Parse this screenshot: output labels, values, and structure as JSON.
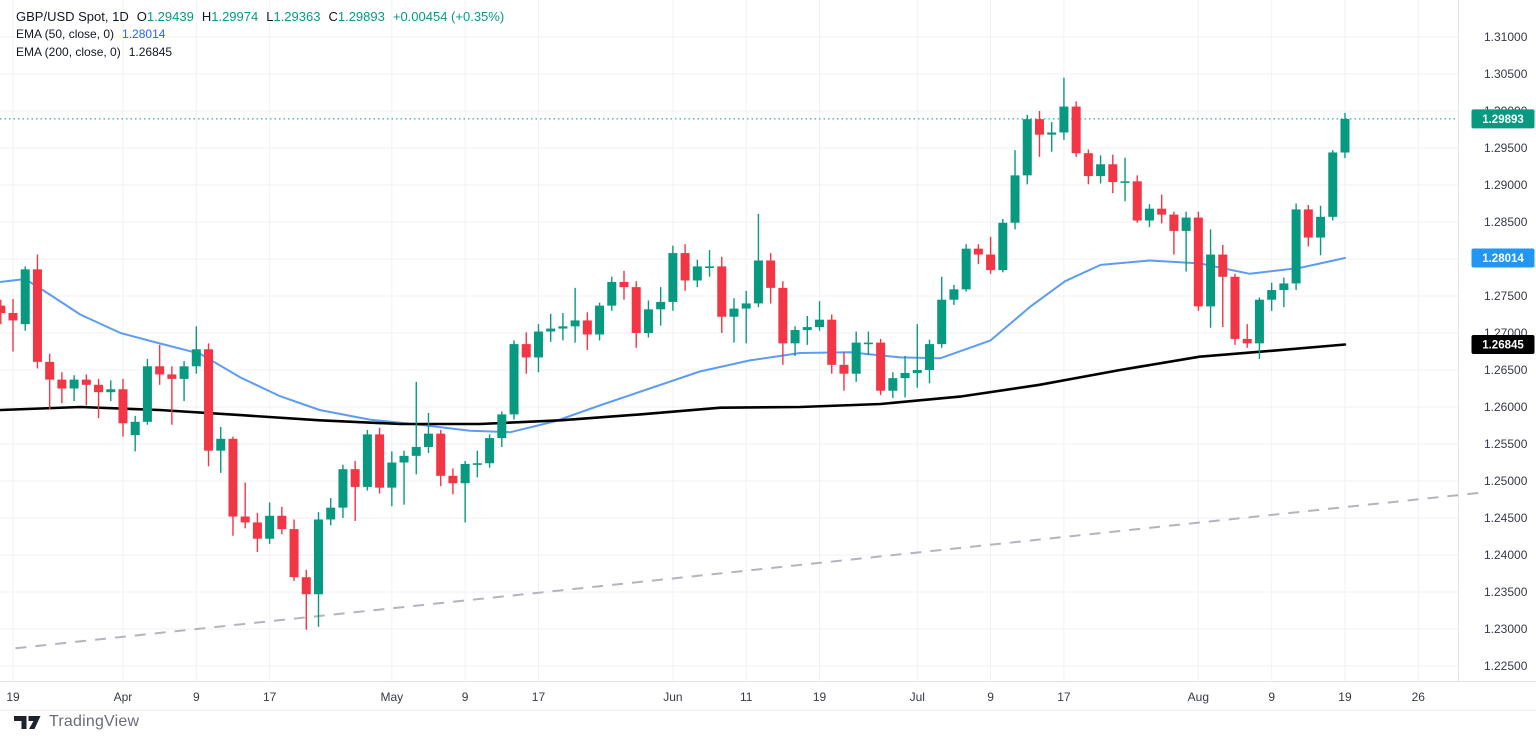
{
  "legend": {
    "symbol": "GBP/USD Spot, 1D",
    "ohlc": [
      {
        "label": "O",
        "value": "1.29439"
      },
      {
        "label": "H",
        "value": "1.29974"
      },
      {
        "label": "L",
        "value": "1.29363"
      },
      {
        "label": "C",
        "value": "1.29893"
      }
    ],
    "change": "+0.00454 (+0.35%)",
    "indicators": [
      {
        "label": "EMA (50, close, 0)",
        "value": "1.28014",
        "color": "#2962ff"
      },
      {
        "label": "EMA (200, close, 0)",
        "value": "1.26845",
        "color": "#131722"
      }
    ]
  },
  "watermark": {
    "text": "TradingView"
  },
  "price_axis": {
    "labels": [
      "1.31000",
      "1.30500",
      "1.30000",
      "1.29500",
      "1.29000",
      "1.28500",
      "1.28000",
      "1.27500",
      "1.27000",
      "1.26500",
      "1.26000",
      "1.25500",
      "1.25000",
      "1.24500",
      "1.24000",
      "1.23500",
      "1.23000",
      "1.22500"
    ],
    "badges": [
      {
        "text": "1.29893",
        "price": 1.29893,
        "bg": "#089981",
        "fg": "#ffffff"
      },
      {
        "text": "1.28014",
        "price": 1.28014,
        "bg": "#2196f3",
        "fg": "#ffffff"
      },
      {
        "text": "1.26845",
        "price": 1.26845,
        "bg": "#000000",
        "fg": "#ffffff"
      }
    ]
  },
  "time_axis": {
    "labels": [
      {
        "text": "19",
        "i": 0
      },
      {
        "text": "Apr",
        "i": 9
      },
      {
        "text": "9",
        "i": 15
      },
      {
        "text": "17",
        "i": 21
      },
      {
        "text": "May",
        "i": 31
      },
      {
        "text": "9",
        "i": 37
      },
      {
        "text": "17",
        "i": 43
      },
      {
        "text": "Jun",
        "i": 54
      },
      {
        "text": "11",
        "i": 60
      },
      {
        "text": "19",
        "i": 66
      },
      {
        "text": "Jul",
        "i": 74
      },
      {
        "text": "9",
        "i": 80
      },
      {
        "text": "17",
        "i": 86
      },
      {
        "text": "Aug",
        "i": 97
      },
      {
        "text": "9",
        "i": 103
      },
      {
        "text": "19",
        "i": 109
      },
      {
        "text": "26",
        "i": 115
      }
    ]
  },
  "chart_data": {
    "type": "candlestick",
    "title": "GBP/USD Spot, 1D",
    "symbol": "GBP/USD",
    "interval": "1D",
    "last_close": 1.29893,
    "ylim": [
      1.223,
      1.315
    ],
    "grid": true,
    "colors": {
      "up": "#089981",
      "down": "#f23645",
      "ema50": "#5b9cf6",
      "ema200": "#000000",
      "close_line": "#089981",
      "trendline": "#b2b5be",
      "grid": "#f0f2f6",
      "axis_text": "#363a45",
      "axis_border": "#e0e3eb"
    },
    "columns": [
      "date",
      "open",
      "high",
      "low",
      "close"
    ],
    "candles": [
      [
        "Mar 18",
        1.2737,
        1.2745,
        1.2712,
        1.2727
      ],
      [
        "Mar 19",
        1.2727,
        1.2746,
        1.2675,
        1.2717
      ],
      [
        "Mar 20",
        1.2712,
        1.279,
        1.2703,
        1.2786
      ],
      [
        "Mar 21",
        1.2786,
        1.2806,
        1.2652,
        1.2661
      ],
      [
        "Mar 22",
        1.2661,
        1.2672,
        1.2597,
        1.2637
      ],
      [
        "Mar 25",
        1.2637,
        1.2647,
        1.2605,
        1.2625
      ],
      [
        "Mar 26",
        1.2625,
        1.2643,
        1.2608,
        1.2637
      ],
      [
        "Mar 27",
        1.2637,
        1.2644,
        1.2602,
        1.263
      ],
      [
        "Mar 28",
        1.263,
        1.2638,
        1.2585,
        1.262
      ],
      [
        "Mar 29",
        1.262,
        1.2636,
        1.2608,
        1.2624
      ],
      [
        "Apr 1",
        1.2624,
        1.2638,
        1.256,
        1.2578
      ],
      [
        "Apr 2",
        1.2562,
        1.2588,
        1.254,
        1.258
      ],
      [
        "Apr 3",
        1.258,
        1.2665,
        1.2576,
        1.2655
      ],
      [
        "Apr 4",
        1.2655,
        1.2684,
        1.263,
        1.2644
      ],
      [
        "Apr 5",
        1.2644,
        1.2655,
        1.2576,
        1.2638
      ],
      [
        "Apr 8",
        1.2638,
        1.2662,
        1.2608,
        1.2655
      ],
      [
        "Apr 9",
        1.2655,
        1.2709,
        1.2645,
        1.2678
      ],
      [
        "Apr 10",
        1.2678,
        1.2686,
        1.252,
        1.2541
      ],
      [
        "Apr 11",
        1.2541,
        1.2573,
        1.2511,
        1.2557
      ],
      [
        "Apr 12",
        1.2557,
        1.256,
        1.2426,
        1.2452
      ],
      [
        "Apr 15",
        1.2452,
        1.2498,
        1.2436,
        1.2444
      ],
      [
        "Apr 16",
        1.2444,
        1.2457,
        1.2404,
        1.2422
      ],
      [
        "Apr 17",
        1.2422,
        1.2471,
        1.2415,
        1.2453
      ],
      [
        "Apr 18",
        1.2453,
        1.2465,
        1.2428,
        1.2435
      ],
      [
        "Apr 19",
        1.2435,
        1.2448,
        1.2365,
        1.237
      ],
      [
        "Apr 22",
        1.237,
        1.238,
        1.2299,
        1.2347
      ],
      [
        "Apr 23",
        1.2347,
        1.2458,
        1.2303,
        1.2448
      ],
      [
        "Apr 24",
        1.2448,
        1.2477,
        1.244,
        1.2464
      ],
      [
        "Apr 25",
        1.2464,
        1.2522,
        1.245,
        1.2516
      ],
      [
        "Apr 26",
        1.2516,
        1.2527,
        1.2446,
        1.2492
      ],
      [
        "Apr 29",
        1.2492,
        1.2569,
        1.2487,
        1.2563
      ],
      [
        "Apr 30",
        1.2563,
        1.2572,
        1.2483,
        1.2491
      ],
      [
        "May 1",
        1.2491,
        1.254,
        1.2466,
        1.2525
      ],
      [
        "May 2",
        1.2525,
        1.2541,
        1.2468,
        1.2534
      ],
      [
        "May 3",
        1.2534,
        1.2634,
        1.2509,
        1.2546
      ],
      [
        "May 6",
        1.2546,
        1.2592,
        1.2538,
        1.2564
      ],
      [
        "May 7",
        1.2564,
        1.2569,
        1.2493,
        1.2507
      ],
      [
        "May 8",
        1.2507,
        1.2517,
        1.2482,
        1.2497
      ],
      [
        "May 9",
        1.2497,
        1.2527,
        1.2444,
        1.2523
      ],
      [
        "May 10",
        1.2523,
        1.2541,
        1.2505,
        1.2524
      ],
      [
        "May 13",
        1.2524,
        1.2563,
        1.2518,
        1.2558
      ],
      [
        "May 14",
        1.2558,
        1.2594,
        1.2546,
        1.259
      ],
      [
        "May 15",
        1.259,
        1.269,
        1.2583,
        1.2685
      ],
      [
        "May 16",
        1.2685,
        1.2701,
        1.2645,
        1.2667
      ],
      [
        "May 17",
        1.2667,
        1.2712,
        1.2647,
        1.2702
      ],
      [
        "May 20",
        1.2702,
        1.2726,
        1.2688,
        1.2706
      ],
      [
        "May 21",
        1.2706,
        1.2727,
        1.269,
        1.2709
      ],
      [
        "May 22",
        1.2709,
        1.2761,
        1.2687,
        1.2717
      ],
      [
        "May 23",
        1.2717,
        1.2728,
        1.2677,
        1.2698
      ],
      [
        "May 24",
        1.2698,
        1.2741,
        1.269,
        1.2737
      ],
      [
        "May 27",
        1.2737,
        1.2776,
        1.273,
        1.2769
      ],
      [
        "May 28",
        1.2769,
        1.2784,
        1.2745,
        1.2762
      ],
      [
        "May 29",
        1.2762,
        1.277,
        1.268,
        1.27
      ],
      [
        "May 30",
        1.27,
        1.2744,
        1.2694,
        1.2732
      ],
      [
        "May 31",
        1.2732,
        1.2762,
        1.271,
        1.2742
      ],
      [
        "Jun 3",
        1.2742,
        1.2818,
        1.273,
        1.2808
      ],
      [
        "Jun 4",
        1.2808,
        1.282,
        1.2757,
        1.2771
      ],
      [
        "Jun 5",
        1.2771,
        1.2799,
        1.2762,
        1.279
      ],
      [
        "Jun 6",
        1.279,
        1.2812,
        1.2776,
        1.279
      ],
      [
        "Jun 7",
        1.279,
        1.2803,
        1.27,
        1.2722
      ],
      [
        "Jun 10",
        1.2722,
        1.2747,
        1.2687,
        1.2733
      ],
      [
        "Jun 11",
        1.2733,
        1.2757,
        1.2686,
        1.274
      ],
      [
        "Jun 12",
        1.274,
        1.2861,
        1.2735,
        1.2798
      ],
      [
        "Jun 13",
        1.2798,
        1.2808,
        1.274,
        1.2761
      ],
      [
        "Jun 14",
        1.2761,
        1.277,
        1.2657,
        1.2686
      ],
      [
        "Jun 17",
        1.2686,
        1.2709,
        1.2669,
        1.2704
      ],
      [
        "Jun 18",
        1.2704,
        1.2723,
        1.2684,
        1.2708
      ],
      [
        "Jun 19",
        1.2708,
        1.2743,
        1.2703,
        1.2718
      ],
      [
        "Jun 20",
        1.2718,
        1.2725,
        1.2645,
        1.2657
      ],
      [
        "Jun 21",
        1.2657,
        1.2675,
        1.2622,
        1.2645
      ],
      [
        "Jun 24",
        1.2645,
        1.2702,
        1.2634,
        1.2687
      ],
      [
        "Jun 25",
        1.2687,
        1.2702,
        1.267,
        1.2687
      ],
      [
        "Jun 26",
        1.2687,
        1.2692,
        1.2616,
        1.2622
      ],
      [
        "Jun 27",
        1.2622,
        1.2647,
        1.2612,
        1.2639
      ],
      [
        "Jun 28",
        1.2639,
        1.2669,
        1.2613,
        1.2646
      ],
      [
        "Jul 1",
        1.2646,
        1.2712,
        1.2626,
        1.265
      ],
      [
        "Jul 2",
        1.265,
        1.2691,
        1.2632,
        1.2685
      ],
      [
        "Jul 3",
        1.2685,
        1.2776,
        1.268,
        1.2745
      ],
      [
        "Jul 4",
        1.2745,
        1.2765,
        1.2738,
        1.2759
      ],
      [
        "Jul 5",
        1.2759,
        1.282,
        1.2756,
        1.2814
      ],
      [
        "Jul 8",
        1.2814,
        1.282,
        1.2793,
        1.2806
      ],
      [
        "Jul 9",
        1.2806,
        1.283,
        1.278,
        1.2785
      ],
      [
        "Jul 10",
        1.2785,
        1.2854,
        1.2782,
        1.2849
      ],
      [
        "Jul 11",
        1.2849,
        1.2947,
        1.284,
        1.2913
      ],
      [
        "Jul 12",
        1.2913,
        1.2995,
        1.2901,
        1.2989
      ],
      [
        "Jul 15",
        1.2989,
        1.3,
        1.2938,
        1.2968
      ],
      [
        "Jul 16",
        1.2968,
        1.2985,
        1.2945,
        1.2971
      ],
      [
        "Jul 17",
        1.2971,
        1.3045,
        1.2961,
        1.3006
      ],
      [
        "Jul 18",
        1.3006,
        1.3013,
        1.2938,
        1.2943
      ],
      [
        "Jul 19",
        1.2943,
        1.2948,
        1.2901,
        1.2912
      ],
      [
        "Jul 22",
        1.2912,
        1.294,
        1.2902,
        1.2928
      ],
      [
        "Jul 23",
        1.2928,
        1.2941,
        1.2889,
        1.2904
      ],
      [
        "Jul 24",
        1.2904,
        1.2937,
        1.2878,
        1.2905
      ],
      [
        "Jul 25",
        1.2905,
        1.2913,
        1.2849,
        1.2852
      ],
      [
        "Jul 26",
        1.2852,
        1.2874,
        1.2843,
        1.2868
      ],
      [
        "Jul 29",
        1.2868,
        1.2887,
        1.2848,
        1.286
      ],
      [
        "Jul 30",
        1.286,
        1.2864,
        1.2806,
        1.2838
      ],
      [
        "Jul 31",
        1.2838,
        1.2864,
        1.2783,
        1.2856
      ],
      [
        "Aug 1",
        1.2856,
        1.2864,
        1.273,
        1.2736
      ],
      [
        "Aug 2",
        1.2736,
        1.284,
        1.2707,
        1.2806
      ],
      [
        "Aug 5",
        1.2806,
        1.2819,
        1.2708,
        1.2776
      ],
      [
        "Aug 6",
        1.2776,
        1.278,
        1.2684,
        1.2692
      ],
      [
        "Aug 7",
        1.2692,
        1.2712,
        1.268,
        1.2686
      ],
      [
        "Aug 8",
        1.2686,
        1.2748,
        1.2665,
        1.2745
      ],
      [
        "Aug 9",
        1.2745,
        1.2768,
        1.273,
        1.2758
      ],
      [
        "Aug 12",
        1.2758,
        1.2775,
        1.2735,
        1.2767
      ],
      [
        "Aug 13",
        1.2767,
        1.2875,
        1.2758,
        1.2867
      ],
      [
        "Aug 14",
        1.2867,
        1.2873,
        1.2817,
        1.2829
      ],
      [
        "Aug 15",
        1.2829,
        1.2872,
        1.2805,
        1.2857
      ],
      [
        "Aug 16",
        1.2857,
        1.2947,
        1.2852,
        1.2944
      ],
      [
        "Aug 19",
        1.29439,
        1.29974,
        1.29363,
        1.29893
      ]
    ],
    "ema50": {
      "period": 50,
      "last": 1.28014,
      "points": [
        [
          -1,
          1.2769
        ],
        [
          1,
          1.2773
        ],
        [
          3,
          1.2752
        ],
        [
          5.5,
          1.2725
        ],
        [
          8.8,
          1.27
        ],
        [
          12,
          1.2686
        ],
        [
          15.3,
          1.2672
        ],
        [
          18.6,
          1.264
        ],
        [
          21.8,
          1.2615
        ],
        [
          25.1,
          1.2596
        ],
        [
          29.2,
          1.2583
        ],
        [
          33.3,
          1.2576
        ],
        [
          37.4,
          1.2568
        ],
        [
          40.7,
          1.2566
        ],
        [
          44.4,
          1.2581
        ],
        [
          48,
          1.2602
        ],
        [
          52.1,
          1.2625
        ],
        [
          56.2,
          1.2648
        ],
        [
          60.3,
          1.2663
        ],
        [
          64.4,
          1.2673
        ],
        [
          68.5,
          1.2674
        ],
        [
          72.6,
          1.2667
        ],
        [
          75.9,
          1.2666
        ],
        [
          80,
          1.269
        ],
        [
          83.2,
          1.2735
        ],
        [
          86.1,
          1.277
        ],
        [
          89,
          1.2792
        ],
        [
          93,
          1.2798
        ],
        [
          97.1,
          1.2794
        ],
        [
          101.2,
          1.278
        ],
        [
          105.3,
          1.2788
        ],
        [
          109,
          1.28014
        ]
      ]
    },
    "ema200": {
      "period": 200,
      "last": 1.26845,
      "points": [
        [
          -1,
          1.2596
        ],
        [
          5.5,
          1.26
        ],
        [
          12,
          1.2596
        ],
        [
          18.6,
          1.2589
        ],
        [
          25.1,
          1.2582
        ],
        [
          31.7,
          1.2577
        ],
        [
          38.2,
          1.2577
        ],
        [
          44.8,
          1.2582
        ],
        [
          51.3,
          1.259
        ],
        [
          57.9,
          1.2599
        ],
        [
          64.4,
          1.26
        ],
        [
          71,
          1.2604
        ],
        [
          77.5,
          1.2614
        ],
        [
          84,
          1.263
        ],
        [
          90.6,
          1.265
        ],
        [
          97.1,
          1.2668
        ],
        [
          103,
          1.2676
        ],
        [
          109,
          1.26845
        ]
      ]
    },
    "trendline": {
      "style": "dashed",
      "from": [
        0.2,
        1.2274
      ],
      "to": [
        120,
        1.2484
      ]
    }
  }
}
